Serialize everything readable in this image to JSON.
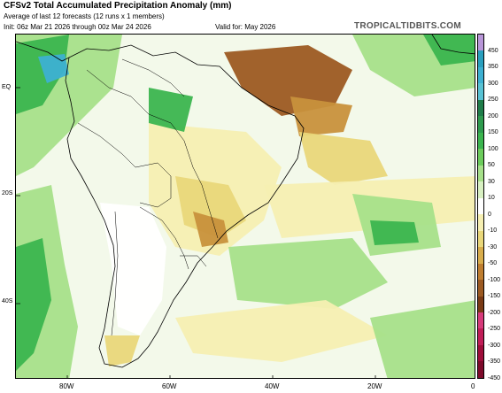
{
  "header": {
    "title": "CFSv2 Total Accumulated Precipitation Anomaly (mm)",
    "subtitle": "Average of last 12 forecasts (12 runs x 1 members)",
    "init": "Init: 06z Mar 21 2026 through 00z Mar 24 2026",
    "valid": "Valid for: May 2026",
    "brand": "TROPICALTIDBITS.COM"
  },
  "axes": {
    "lat_labels": [
      "EQ",
      "20S",
      "40S"
    ],
    "lon_labels": [
      "80W",
      "60W",
      "40W",
      "20W",
      "0"
    ]
  },
  "colorbar": {
    "levels": [
      "450",
      "350",
      "300",
      "250",
      "200",
      "150",
      "100",
      "50",
      "30",
      "10",
      "0",
      "-10",
      "-30",
      "-50",
      "-100",
      "-150",
      "-200",
      "-250",
      "-300",
      "-350",
      "-450"
    ],
    "colors": [
      "#b896d8",
      "#2a9fbe",
      "#3db0d2",
      "#58c2d4",
      "#1f7d4a",
      "#2e9b4e",
      "#3bb54f",
      "#6ccc5c",
      "#a6e08a",
      "#d8f0c2",
      "#ffffff",
      "#f6efb2",
      "#e9d77a",
      "#d8ad4c",
      "#bf7e30",
      "#9c5a22",
      "#7a3a15",
      "#d63a7a",
      "#c01d57",
      "#9e0d3a",
      "#7d0a2a"
    ]
  },
  "map": {
    "colors": {
      "ocean_bg": "#f3f9ea",
      "dry_light": "#f6efb2",
      "dry_mid": "#e9d77a",
      "dry_strong": "#c8913c",
      "dry_max": "#9c5a22",
      "wet_light": "#a6e08a",
      "wet_mid": "#3bb54f",
      "wet_strong": "#1f7d4a",
      "wet_blue": "#3db0d2",
      "land_white": "#ffffff",
      "border": "#000000"
    }
  }
}
